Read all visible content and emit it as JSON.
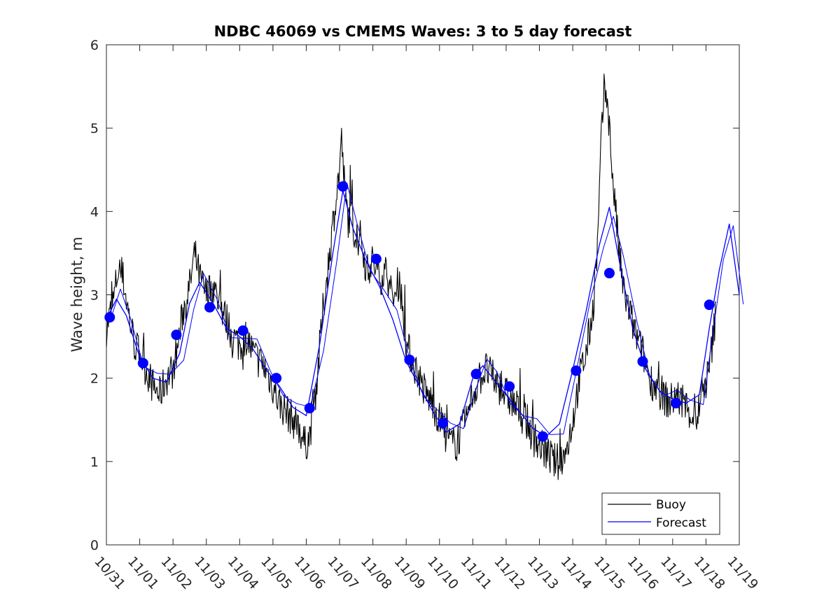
{
  "chart_data": {
    "type": "line",
    "title": "NDBC 46069 vs CMEMS Waves: 3 to 5 day forecast",
    "xlabel": "",
    "ylabel": "Wave height, m",
    "ylim": [
      0,
      6
    ],
    "xlim": [
      0,
      19
    ],
    "y_ticks": [
      0,
      1,
      2,
      3,
      4,
      5,
      6
    ],
    "x_ticks": [
      0,
      1,
      2,
      3,
      4,
      5,
      6,
      7,
      8,
      9,
      10,
      11,
      12,
      13,
      14,
      15,
      16,
      17,
      18,
      19
    ],
    "x_tick_labels": [
      "10/31",
      "11/01",
      "11/02",
      "11/03",
      "11/04",
      "11/05",
      "11/06",
      "11/07",
      "11/08",
      "11/09",
      "11/10",
      "11/11",
      "11/12",
      "11/13",
      "11/14",
      "11/15",
      "11/16",
      "11/17",
      "11/18",
      "11/19"
    ],
    "legend": {
      "position": "bottom-right",
      "entries": [
        "Buoy",
        "Forecast"
      ]
    },
    "colors": {
      "buoy": "#000000",
      "forecast": "#0000ff",
      "marker": "#0000ff",
      "axis": "#262626"
    },
    "series": [
      {
        "name": "Buoy",
        "x": [
          0,
          0.2,
          0.35,
          0.5,
          0.7,
          0.85,
          1,
          1.2,
          1.4,
          1.6,
          1.8,
          2,
          2.15,
          2.3,
          2.5,
          2.65,
          2.8,
          3,
          3.2,
          3.4,
          3.6,
          3.8,
          4,
          4.2,
          4.4,
          4.6,
          4.8,
          5,
          5.2,
          5.4,
          5.6,
          5.8,
          5.95,
          6.1,
          6.3,
          6.5,
          6.7,
          6.9,
          7,
          7.05,
          7.15,
          7.25,
          7.35,
          7.5,
          7.65,
          7.8,
          8,
          8.2,
          8.4,
          8.6,
          8.8,
          9,
          9.2,
          9.4,
          9.6,
          9.8,
          10,
          10.2,
          10.4,
          10.6,
          10.8,
          11,
          11.2,
          11.4,
          11.6,
          11.8,
          12,
          12.2,
          12.4,
          12.6,
          12.8,
          13,
          13.2,
          13.4,
          13.6,
          13.8,
          14,
          14.2,
          14.4,
          14.6,
          14.75,
          14.85,
          14.95,
          15.05,
          15.2,
          15.35,
          15.5,
          15.7,
          15.9,
          16.1,
          16.3,
          16.5,
          16.7,
          16.9,
          17.1,
          17.3,
          17.5,
          17.7,
          17.9,
          18.1,
          18.3
        ],
        "values": [
          2.6,
          2.9,
          3.3,
          3.2,
          2.7,
          2.4,
          2.3,
          2.1,
          1.9,
          1.8,
          2.0,
          2.1,
          2.4,
          2.8,
          3.1,
          3.5,
          3.2,
          3.0,
          3.1,
          2.9,
          2.7,
          2.5,
          2.4,
          2.5,
          2.3,
          2.2,
          2.1,
          1.9,
          1.7,
          1.6,
          1.5,
          1.4,
          1.2,
          1.3,
          1.9,
          2.8,
          3.5,
          4.2,
          4.5,
          4.9,
          4.3,
          3.9,
          4.0,
          3.6,
          3.7,
          3.3,
          3.4,
          3.2,
          3.3,
          2.9,
          3.2,
          2.4,
          2.2,
          2.0,
          1.8,
          1.7,
          1.5,
          1.3,
          1.2,
          1.3,
          1.5,
          1.8,
          2.0,
          2.1,
          2.0,
          1.9,
          1.8,
          1.7,
          1.6,
          1.5,
          1.3,
          1.2,
          1.1,
          1.0,
          1.0,
          1.1,
          1.5,
          2.0,
          2.3,
          2.8,
          3.6,
          4.8,
          5.5,
          5.3,
          4.4,
          3.7,
          3.1,
          2.8,
          2.5,
          2.3,
          2.0,
          1.9,
          1.8,
          1.7,
          1.8,
          1.7,
          1.6,
          1.5,
          1.8,
          2.1,
          2.8
        ]
      },
      {
        "name": "Forecast",
        "x": [
          0,
          0.3,
          0.6,
          1,
          1.4,
          1.8,
          2.2,
          2.5,
          2.8,
          3.2,
          3.6,
          4,
          4.4,
          4.8,
          5.2,
          5.6,
          6,
          6.4,
          6.8,
          7.1,
          7.4,
          7.8,
          8.2,
          8.6,
          9,
          9.4,
          9.8,
          10.2,
          10.6,
          11,
          11.3,
          11.6,
          12,
          12.4,
          12.8,
          13.2,
          13.6,
          14,
          14.4,
          14.8,
          15.1,
          15.4,
          15.8,
          16.2,
          16.6,
          17,
          17.4,
          17.8,
          18.1,
          18.4,
          18.7,
          19
        ],
        "values": [
          2.7,
          2.95,
          2.75,
          2.25,
          2.0,
          1.95,
          2.3,
          2.9,
          3.15,
          2.9,
          2.6,
          2.5,
          2.35,
          2.1,
          1.9,
          1.65,
          1.55,
          2.4,
          3.5,
          4.25,
          3.8,
          3.4,
          3.1,
          2.7,
          2.2,
          1.9,
          1.6,
          1.35,
          1.45,
          2.0,
          2.15,
          2.0,
          1.8,
          1.6,
          1.4,
          1.3,
          1.45,
          2.1,
          2.8,
          3.6,
          4.05,
          3.4,
          2.6,
          2.1,
          1.85,
          1.75,
          1.7,
          1.8,
          2.6,
          3.3,
          3.85,
          3.0
        ]
      },
      {
        "name": "Forecast markers",
        "x": [
          0.1,
          1.1,
          2.1,
          3.1,
          4.1,
          5.1,
          6.1,
          7.1,
          8.1,
          9.1,
          10.1,
          11.1,
          12.1,
          13.1,
          14.1,
          15.1,
          16.1,
          17.1,
          18.1
        ],
        "values": [
          2.73,
          2.18,
          2.52,
          2.85,
          2.57,
          2.0,
          1.64,
          4.3,
          3.43,
          2.22,
          1.46,
          2.05,
          1.9,
          1.3,
          2.09,
          3.26,
          2.2,
          1.7,
          2.88
        ]
      }
    ]
  }
}
